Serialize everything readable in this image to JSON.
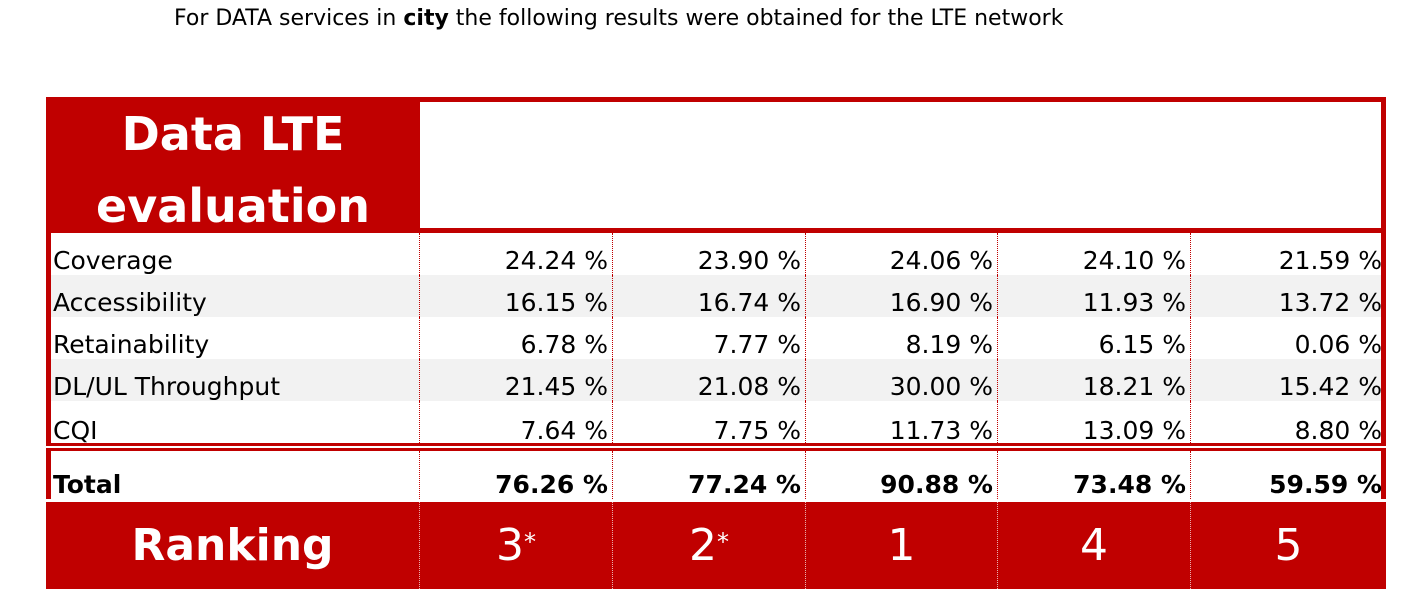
{
  "heading": {
    "prefix": "For DATA services in ",
    "bold": "city",
    "suffix": " the following results were obtained for the LTE network"
  },
  "table": {
    "title_line1": "Data LTE",
    "title_line2": "evaluation",
    "rows": [
      {
        "label": "Coverage",
        "values": [
          "24.24 %",
          "23.90 %",
          "24.06 %",
          "24.10 %",
          "21.59 %"
        ]
      },
      {
        "label": "Accessibility",
        "values": [
          "16.15 %",
          "16.74 %",
          "16.90 %",
          "11.93 %",
          "13.72 %"
        ]
      },
      {
        "label": "Retainability",
        "values": [
          "6.78 %",
          "7.77 %",
          "8.19 %",
          "6.15 %",
          "0.06 %"
        ]
      },
      {
        "label": "DL/UL Throughput",
        "values": [
          "21.45 %",
          "21.08 %",
          "30.00 %",
          "18.21 %",
          "15.42 %"
        ]
      },
      {
        "label": "CQI",
        "values": [
          "7.64 %",
          "7.75 %",
          "11.73 %",
          "13.09 %",
          "8.80 %"
        ]
      }
    ],
    "total": {
      "label": "Total",
      "values": [
        "76.26 %",
        "77.24 %",
        "90.88 %",
        "73.48 %",
        "59.59 %"
      ]
    },
    "ranking": {
      "label": "Ranking",
      "values": [
        {
          "rank": "3",
          "mark": "*"
        },
        {
          "rank": "2",
          "mark": "*"
        },
        {
          "rank": "1",
          "mark": ""
        },
        {
          "rank": "4",
          "mark": ""
        },
        {
          "rank": "5",
          "mark": ""
        }
      ]
    }
  },
  "colors": {
    "accent": "#c00000",
    "alt_row": "#f2f2f2"
  }
}
